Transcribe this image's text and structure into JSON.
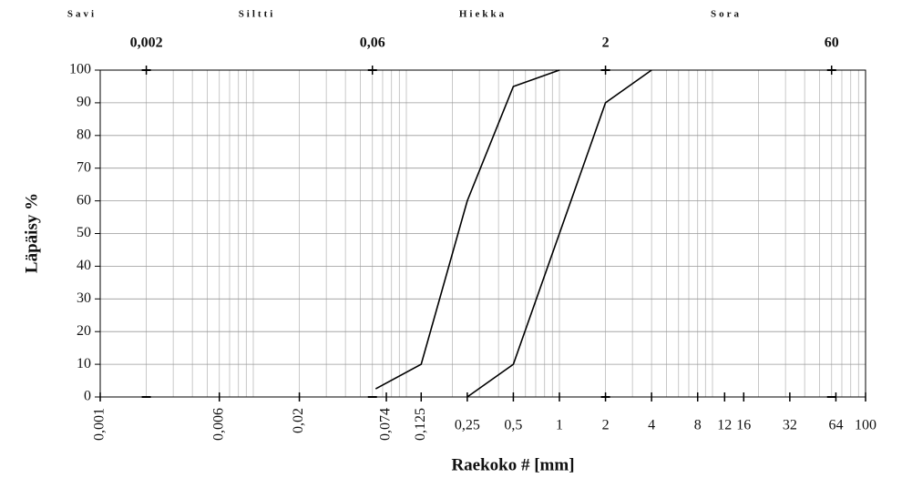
{
  "chart_data": {
    "type": "line",
    "xlog": true,
    "grid": true,
    "ylabel": "Läpäisy %",
    "xlabel": "Raekoko # [mm]",
    "zones": [
      "Savi",
      "Siltti",
      "Hiekka",
      "Sora"
    ],
    "xlim": [
      0.001,
      100
    ],
    "ylim": [
      0,
      100
    ],
    "yticks": [
      0,
      10,
      20,
      30,
      40,
      50,
      60,
      70,
      80,
      90,
      100
    ],
    "xticks": [
      {
        "value": 0.001,
        "label": "0,001"
      },
      {
        "value": 0.006,
        "label": "0,006"
      },
      {
        "value": 0.02,
        "label": "0,02"
      },
      {
        "value": 0.074,
        "label": "0,074"
      },
      {
        "value": 0.125,
        "label": "0,125"
      },
      {
        "value": 0.25,
        "label": "0,25"
      },
      {
        "value": 0.5,
        "label": "0,5"
      },
      1,
      2,
      4,
      8,
      12,
      16,
      32,
      64,
      100
    ],
    "x2ticks": [
      {
        "value": 0.002,
        "label": "0,002"
      },
      {
        "value": 0.06,
        "label": "0,06"
      },
      2,
      60
    ],
    "series": [
      {
        "color": "#000000",
        "x": [
          0.063,
          0.125,
          0.25,
          0.5,
          1
        ],
        "values": [
          2.5,
          10,
          60,
          95,
          100
        ]
      },
      {
        "color": "#000000",
        "x": [
          0.25,
          0.5,
          2,
          4
        ],
        "values": [
          0,
          10,
          90,
          100
        ]
      }
    ]
  }
}
